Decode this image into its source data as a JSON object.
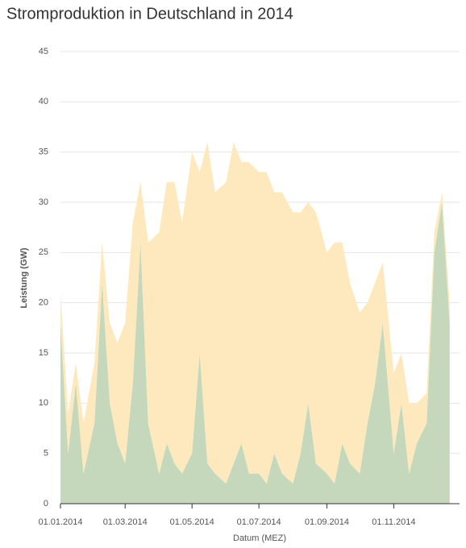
{
  "chart_data": {
    "type": "area",
    "stacked": true,
    "title": "Stromproduktion in Deutschland in 2014",
    "x_label": "Datum (MEZ)",
    "y_label": "Leistung (GW)",
    "x": [
      "01.01.2014",
      "08.01.2014",
      "15.01.2014",
      "22.01.2014",
      "01.02.2014",
      "08.02.2014",
      "15.02.2014",
      "22.02.2014",
      "01.03.2014",
      "08.03.2014",
      "15.03.2014",
      "22.03.2014",
      "01.04.2014",
      "08.04.2014",
      "15.04.2014",
      "22.04.2014",
      "01.05.2014",
      "08.05.2014",
      "15.05.2014",
      "22.05.2014",
      "01.06.2014",
      "08.06.2014",
      "15.06.2014",
      "22.06.2014",
      "01.07.2014",
      "08.07.2014",
      "15.07.2014",
      "22.07.2014",
      "01.08.2014",
      "08.08.2014",
      "15.08.2014",
      "22.08.2014",
      "01.09.2014",
      "08.09.2014",
      "15.09.2014",
      "22.09.2014",
      "01.10.2014",
      "08.10.2014",
      "15.10.2014",
      "22.10.2014",
      "01.11.2014",
      "08.11.2014",
      "15.11.2014",
      "22.11.2014",
      "01.12.2014",
      "08.12.2014",
      "15.12.2014",
      "22.12.2014"
    ],
    "series": [
      {
        "color": "#c5d8bc",
        "values": [
          18,
          5,
          12,
          3,
          8,
          22,
          10,
          6,
          4,
          12,
          26,
          8,
          3,
          6,
          4,
          3,
          5,
          15,
          4,
          3,
          2,
          4,
          6,
          3,
          3,
          2,
          5,
          3,
          2,
          5,
          10,
          4,
          3,
          2,
          6,
          4,
          3,
          8,
          12,
          18,
          5,
          10,
          3,
          6,
          8,
          25,
          30,
          18
        ]
      },
      {
        "color": "#fde9bd",
        "values": [
          3,
          4,
          2,
          5,
          6,
          4,
          8,
          10,
          14,
          16,
          6,
          18,
          24,
          26,
          28,
          25,
          30,
          18,
          32,
          28,
          30,
          32,
          28,
          31,
          30,
          31,
          26,
          28,
          27,
          24,
          20,
          25,
          22,
          24,
          20,
          18,
          16,
          12,
          10,
          6,
          8,
          5,
          7,
          4,
          3,
          2,
          1,
          2
        ]
      }
    ],
    "xlim": [
      "01.01.2014",
      "31.12.2014"
    ],
    "xticks": [
      "01.01.2014",
      "01.03.2014",
      "01.05.2014",
      "01.07.2014",
      "01.09.2014",
      "01.11.2014"
    ],
    "ylim": [
      0,
      45
    ],
    "yticks": [
      0,
      5,
      10,
      15,
      20,
      25,
      30,
      35,
      40,
      45
    ],
    "grid": true
  }
}
